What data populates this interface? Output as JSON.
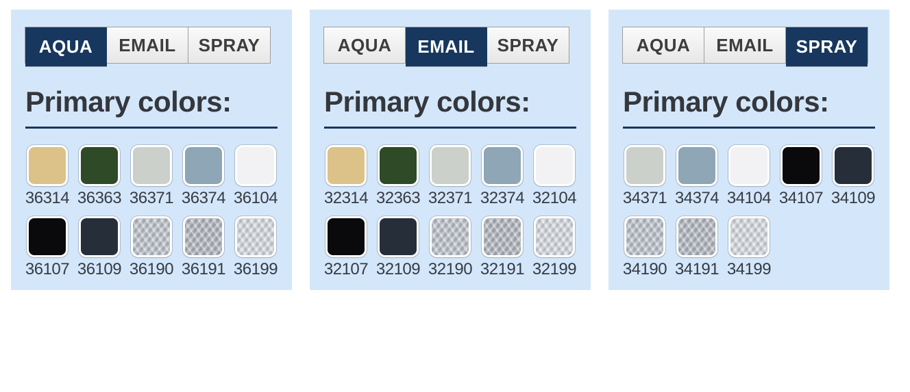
{
  "heading": "Primary colors:",
  "tabs": [
    {
      "id": "aqua",
      "label": "AQUA"
    },
    {
      "id": "email",
      "label": "EMAIL"
    },
    {
      "id": "spray",
      "label": "SPRAY"
    }
  ],
  "colors": {
    "panel_background": "#d4e7fa",
    "active_tab_background": "#17375e",
    "active_tab_text": "#ffffff",
    "inactive_tab_text": "#3d3d3d",
    "heading_text": "#34373d",
    "divider": "#17375e",
    "label_text": "#363b44"
  },
  "panels": [
    {
      "name": "panel-aqua",
      "active_tab": "aqua",
      "swatches": [
        {
          "code": "36314",
          "color": "#dcc289",
          "finish": "solid"
        },
        {
          "code": "36363",
          "color": "#2e4a27",
          "finish": "solid"
        },
        {
          "code": "36371",
          "color": "#cbd1ca",
          "finish": "solid"
        },
        {
          "code": "36374",
          "color": "#8ea6b6",
          "finish": "solid"
        },
        {
          "code": "36104",
          "color": "#f2f2f4",
          "finish": "solid"
        },
        {
          "code": "36107",
          "color": "#0a0a0c",
          "finish": "solid"
        },
        {
          "code": "36109",
          "color": "#262e39",
          "finish": "solid"
        },
        {
          "code": "36190",
          "color": "#b5bac2",
          "finish": "metallic"
        },
        {
          "code": "36191",
          "color": "#a7abb2",
          "finish": "metallic"
        },
        {
          "code": "36199",
          "color": "#d2d5da",
          "finish": "metallic"
        }
      ]
    },
    {
      "name": "panel-email",
      "active_tab": "email",
      "swatches": [
        {
          "code": "32314",
          "color": "#dcc289",
          "finish": "solid"
        },
        {
          "code": "32363",
          "color": "#2e4a27",
          "finish": "solid"
        },
        {
          "code": "32371",
          "color": "#cbd1ca",
          "finish": "solid"
        },
        {
          "code": "32374",
          "color": "#8ea6b6",
          "finish": "solid"
        },
        {
          "code": "32104",
          "color": "#f2f2f4",
          "finish": "solid"
        },
        {
          "code": "32107",
          "color": "#0a0a0c",
          "finish": "solid"
        },
        {
          "code": "32109",
          "color": "#262e39",
          "finish": "solid"
        },
        {
          "code": "32190",
          "color": "#b5bac2",
          "finish": "metallic"
        },
        {
          "code": "32191",
          "color": "#a7abb2",
          "finish": "metallic"
        },
        {
          "code": "32199",
          "color": "#d2d5da",
          "finish": "metallic"
        }
      ]
    },
    {
      "name": "panel-spray",
      "active_tab": "spray",
      "swatches": [
        {
          "code": "34371",
          "color": "#cbd1ca",
          "finish": "solid"
        },
        {
          "code": "34374",
          "color": "#8ea6b6",
          "finish": "solid"
        },
        {
          "code": "34104",
          "color": "#f2f2f4",
          "finish": "solid"
        },
        {
          "code": "34107",
          "color": "#0a0a0c",
          "finish": "solid"
        },
        {
          "code": "34109",
          "color": "#262e39",
          "finish": "solid"
        },
        {
          "code": "34190",
          "color": "#b4bac3",
          "finish": "metallic"
        },
        {
          "code": "34191",
          "color": "#a8adb6",
          "finish": "metallic"
        },
        {
          "code": "34199",
          "color": "#d3d6db",
          "finish": "metallic"
        }
      ]
    }
  ]
}
